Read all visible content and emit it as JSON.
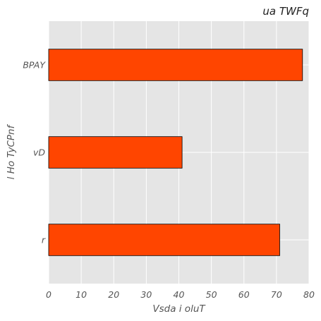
{
  "chart_data": {
    "type": "bar",
    "orientation": "horizontal",
    "title": "ua TWFq",
    "xlabel": "Vsda i oluT",
    "ylabel": "l Ho TyCPnf",
    "categories": [
      "r",
      "vD",
      "BPAY"
    ],
    "values": [
      71,
      41,
      78
    ],
    "xlim": [
      0,
      80
    ],
    "xticks": [
      0,
      10,
      20,
      30,
      40,
      50,
      60,
      70,
      80
    ],
    "grid": true,
    "bar_color": "#ff4500",
    "bar_edge_color": "#000000",
    "background_color": "#e5e5e5",
    "grid_color": "#ffffff"
  }
}
